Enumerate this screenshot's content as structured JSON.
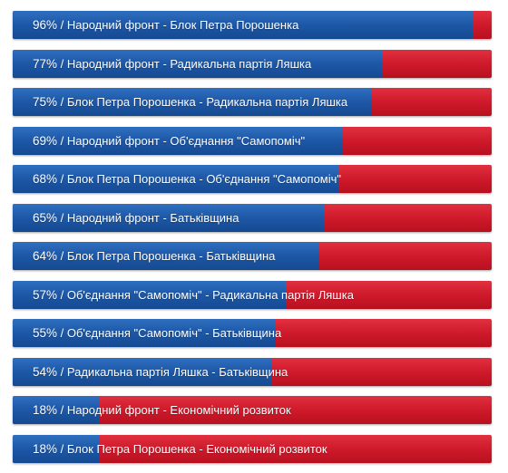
{
  "colors": {
    "agree": "#1d57a6",
    "disagree": "#cf1a2b",
    "text": "#ffffff"
  },
  "chart_data": {
    "type": "bar",
    "orientation": "horizontal",
    "stacked": true,
    "unit": "%",
    "categories": [
      "Народний фронт - Блок Петра Порошенка",
      "Народний фронт - Радикальна партія Ляшка",
      "Блок Петра Порошенка - Радикальна партія Ляшка",
      "Народний фронт - Об'єднання \"Самопоміч\"",
      "Блок Петра Порошенка - Об'єднання \"Самопоміч\"",
      "Народний фронт - Батьківщина",
      "Блок Петра Порошенка - Батьківщина",
      "Об'єднання \"Самопоміч\" - Радикальна партія Ляшка",
      "Об'єднання \"Самопоміч\" - Батьківщина",
      "Радикальна партія Ляшка - Батьківщина",
      "Народний фронт - Економічний розвиток",
      "Блок Петра Порошенка - Економічний розвиток"
    ],
    "values": [
      96,
      77,
      75,
      69,
      68,
      65,
      64,
      57,
      55,
      54,
      18,
      18
    ],
    "xlim": [
      0,
      100
    ],
    "grid": false,
    "legend": "none"
  }
}
